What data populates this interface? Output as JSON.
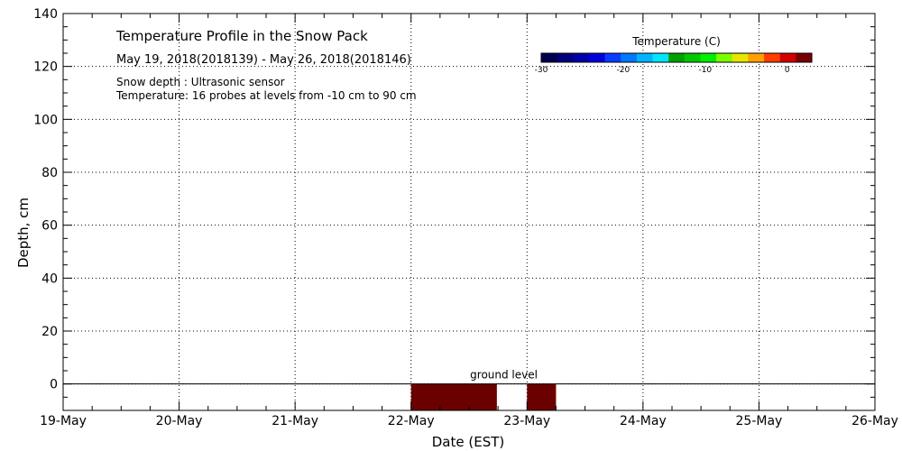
{
  "chart_data": {
    "type": "heatmap",
    "title": "Temperature Profile in the Snow Pack",
    "subtitle": "May 19, 2018(2018139) - May 26, 2018(2018146)",
    "notes": [
      "Snow depth : Ultrasonic sensor",
      "Temperature: 16 probes at levels from -10 cm to 90 cm"
    ],
    "xlabel": "Date (EST)",
    "ylabel": "Depth, cm",
    "x_ticks": [
      "19-May",
      "20-May",
      "21-May",
      "22-May",
      "23-May",
      "24-May",
      "25-May",
      "26-May"
    ],
    "xlim": [
      0,
      7
    ],
    "y_ticks": [
      0,
      20,
      40,
      60,
      80,
      100,
      120,
      140
    ],
    "ylim": [
      -10,
      140
    ],
    "grid": true,
    "ground_level": {
      "y": 0,
      "label": "ground level"
    },
    "colorbar": {
      "title": "Temperature (C)",
      "ticks": [
        -30,
        -20,
        -10,
        0
      ],
      "range": [
        -30,
        3
      ],
      "colors": [
        "#000050",
        "#00007c",
        "#0000aa",
        "#0000dc",
        "#0a3cff",
        "#0078ff",
        "#00b4ff",
        "#00e6ff",
        "#00a000",
        "#00c800",
        "#00ee00",
        "#7cff00",
        "#e6e600",
        "#ffa000",
        "#ff3c00",
        "#d20000",
        "#780000"
      ]
    },
    "cells": [
      {
        "x_start": 3.0,
        "x_end": 3.74,
        "y_start": -10,
        "y_end": 0,
        "value": 3,
        "color": "#6a0000"
      },
      {
        "x_start": 4.0,
        "x_end": 4.25,
        "y_start": -10,
        "y_end": 0,
        "value": 3,
        "color": "#6a0000"
      }
    ]
  }
}
